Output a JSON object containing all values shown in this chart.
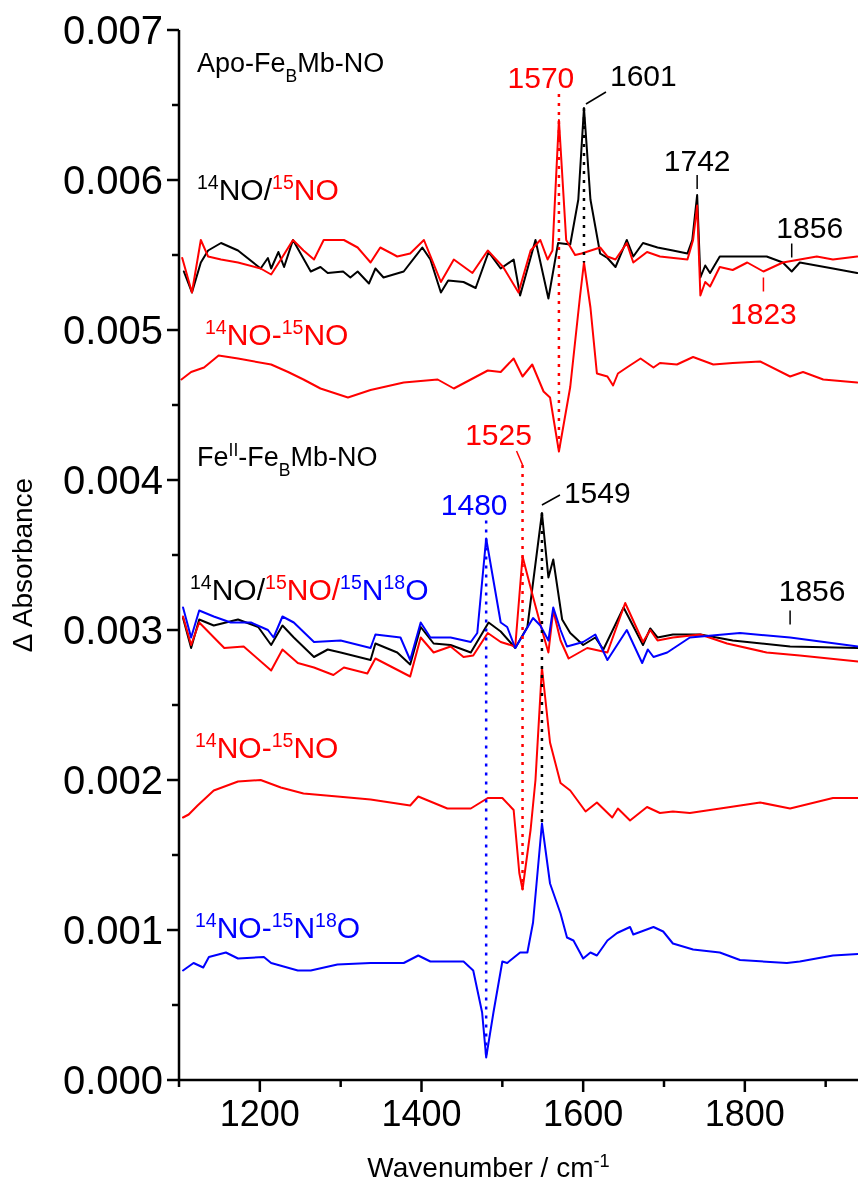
{
  "chart_data": {
    "type": "line",
    "xlabel": "Wavenumber / cm$^{-1}$",
    "ylabel": "Δ Absorbance",
    "xlim": [
      1100,
      1940
    ],
    "ylim": [
      0,
      0.007
    ],
    "xticks": [
      {
        "value": 1100,
        "label": null
      },
      1200,
      {
        "value": 1300,
        "label": null
      },
      1400,
      {
        "value": 1500,
        "label": null
      },
      1600,
      {
        "value": 1700,
        "label": null
      },
      1800,
      {
        "value": 1900,
        "label": null
      }
    ],
    "yticks": [
      {
        "value": 0,
        "label": "0.000"
      },
      {
        "value": 0.0005,
        "label": null
      },
      {
        "value": 0.001,
        "label": "0.001"
      },
      {
        "value": 0.0015,
        "label": null
      },
      {
        "value": 0.002,
        "label": "0.002"
      },
      {
        "value": 0.0025,
        "label": null
      },
      {
        "value": 0.003,
        "label": "0.003"
      },
      {
        "value": 0.0035,
        "label": null
      },
      {
        "value": 0.004,
        "label": "0.004"
      },
      {
        "value": 0.0045,
        "label": null
      },
      {
        "value": 0.005,
        "label": "0.005"
      },
      {
        "value": 0.0055,
        "label": null
      },
      {
        "value": 0.006,
        "label": "0.006"
      },
      {
        "value": 0.0065,
        "label": null
      },
      {
        "value": 0.007,
        "label": "0.007"
      }
    ],
    "series": [
      {
        "color": "#000000",
        "x": [
          1106,
          1116,
          1127,
          1136,
          1152,
          1173,
          1201,
          1210,
          1214,
          1223,
          1230,
          1241,
          1263,
          1275,
          1284,
          1303,
          1312,
          1321,
          1335,
          1343,
          1353,
          1378,
          1401,
          1411,
          1424,
          1433,
          1452,
          1467,
          1483,
          1498,
          1514,
          1522,
          1541,
          1557,
          1569,
          1584,
          1594,
          1601,
          1609,
          1621,
          1630,
          1640,
          1654,
          1662,
          1674,
          1692,
          1711,
          1729,
          1735,
          1741,
          1745,
          1751,
          1757,
          1769,
          1785,
          1827,
          1847,
          1858,
          1868,
          1909,
          1939
        ],
        "values": [
          0.00539,
          0.00525,
          0.00545,
          0.00553,
          0.00558,
          0.00553,
          0.00541,
          0.00548,
          0.00541,
          0.00552,
          0.00542,
          0.0056,
          0.00539,
          0.00542,
          0.00538,
          0.00539,
          0.00535,
          0.00539,
          0.00531,
          0.00541,
          0.00535,
          0.00539,
          0.00555,
          0.00547,
          0.00525,
          0.00533,
          0.00532,
          0.00528,
          0.00552,
          0.00541,
          0.00547,
          0.00523,
          0.0056,
          0.00521,
          0.00558,
          0.00557,
          0.00587,
          0.00648,
          0.00587,
          0.00551,
          0.00548,
          0.00542,
          0.0056,
          0.00549,
          0.00558,
          0.00555,
          0.00553,
          0.00551,
          0.0056,
          0.0059,
          0.00535,
          0.00543,
          0.00538,
          0.00549,
          0.00549,
          0.00549,
          0.00545,
          0.00539,
          0.00545,
          0.00541,
          0.00538
        ]
      },
      {
        "color": "#ff0000",
        "x": [
          1104,
          1116,
          1127,
          1136,
          1152,
          1173,
          1201,
          1214,
          1226,
          1241,
          1254,
          1267,
          1279,
          1304,
          1321,
          1337,
          1349,
          1370,
          1386,
          1403,
          1424,
          1440,
          1463,
          1482,
          1501,
          1520,
          1535,
          1547,
          1556,
          1562,
          1570,
          1579,
          1590,
          1598,
          1621,
          1630,
          1640,
          1654,
          1662,
          1679,
          1695,
          1729,
          1736,
          1741,
          1745,
          1751,
          1757,
          1769,
          1785,
          1803,
          1823,
          1847,
          1889,
          1909,
          1939
        ],
        "values": [
          0.00548,
          0.00525,
          0.0056,
          0.00549,
          0.00547,
          0.00545,
          0.00541,
          0.00537,
          0.00547,
          0.0056,
          0.00553,
          0.00547,
          0.0056,
          0.0056,
          0.00555,
          0.00545,
          0.00555,
          0.00549,
          0.00551,
          0.0056,
          0.00532,
          0.00547,
          0.00538,
          0.00553,
          0.00542,
          0.00525,
          0.00553,
          0.0056,
          0.00547,
          0.00553,
          0.0064,
          0.0056,
          0.0055,
          0.00551,
          0.00555,
          0.00549,
          0.00547,
          0.00558,
          0.00545,
          0.00552,
          0.00549,
          0.00547,
          0.0056,
          0.00583,
          0.00523,
          0.00532,
          0.00529,
          0.00542,
          0.0054,
          0.00545,
          0.00539,
          0.00545,
          0.00549,
          0.00547,
          0.00549
        ]
      },
      {
        "color": "#ff0000",
        "x": [
          1103,
          1115,
          1131,
          1149,
          1173,
          1214,
          1235,
          1254,
          1275,
          1309,
          1337,
          1378,
          1420,
          1440,
          1461,
          1482,
          1498,
          1514,
          1525,
          1537,
          1551,
          1559,
          1570,
          1584,
          1596,
          1601,
          1609,
          1617,
          1630,
          1637,
          1643,
          1654,
          1671,
          1687,
          1695,
          1716,
          1736,
          1761,
          1785,
          1819,
          1856,
          1872,
          1897,
          1939
        ],
        "values": [
          0.00467,
          0.00472,
          0.00475,
          0.00483,
          0.00481,
          0.00477,
          0.00472,
          0.00467,
          0.00461,
          0.00455,
          0.0046,
          0.00465,
          0.00467,
          0.00461,
          0.00467,
          0.00473,
          0.00472,
          0.00481,
          0.00469,
          0.00477,
          0.00459,
          0.00455,
          0.00419,
          0.00462,
          0.00522,
          0.00545,
          0.00515,
          0.00471,
          0.00469,
          0.00463,
          0.00471,
          0.00475,
          0.00481,
          0.00475,
          0.00478,
          0.00477,
          0.00482,
          0.00477,
          0.00478,
          0.00479,
          0.00469,
          0.00472,
          0.00467,
          0.00465
        ]
      },
      {
        "color": "#000000",
        "x": [
          1105,
          1115,
          1125,
          1143,
          1173,
          1198,
          1214,
          1228,
          1242,
          1267,
          1284,
          1300,
          1337,
          1343,
          1370,
          1386,
          1399,
          1415,
          1436,
          1461,
          1483,
          1498,
          1516,
          1531,
          1549,
          1557,
          1563,
          1574,
          1584,
          1600,
          1615,
          1625,
          1650,
          1674,
          1683,
          1692,
          1711,
          1745,
          1785,
          1856,
          1940
        ],
        "values": [
          0.00308,
          0.00288,
          0.00307,
          0.00303,
          0.00307,
          0.00302,
          0.0029,
          0.00303,
          0.00295,
          0.00282,
          0.00287,
          0.00285,
          0.0028,
          0.00291,
          0.00285,
          0.00277,
          0.00302,
          0.00291,
          0.0029,
          0.00285,
          0.00305,
          0.00299,
          0.00288,
          0.00302,
          0.00378,
          0.00335,
          0.00347,
          0.00307,
          0.00298,
          0.0029,
          0.00295,
          0.00287,
          0.00315,
          0.0029,
          0.00301,
          0.00295,
          0.00297,
          0.00297,
          0.00293,
          0.00289,
          0.00288
        ]
      },
      {
        "color": "#ff0000",
        "x": [
          1105,
          1115,
          1125,
          1156,
          1180,
          1214,
          1228,
          1247,
          1267,
          1291,
          1304,
          1333,
          1343,
          1386,
          1399,
          1415,
          1436,
          1452,
          1464,
          1482,
          1498,
          1516,
          1525,
          1538,
          1549,
          1557,
          1563,
          1572,
          1582,
          1605,
          1630,
          1652,
          1674,
          1683,
          1692,
          1711,
          1745,
          1778,
          1827,
          1868,
          1940
        ],
        "values": [
          0.00309,
          0.0029,
          0.00305,
          0.00288,
          0.00289,
          0.00273,
          0.00287,
          0.00278,
          0.00275,
          0.0027,
          0.00275,
          0.00271,
          0.00281,
          0.00269,
          0.00295,
          0.00285,
          0.00289,
          0.00282,
          0.00283,
          0.00298,
          0.00292,
          0.00289,
          0.00349,
          0.00322,
          0.003,
          0.00285,
          0.00313,
          0.00293,
          0.00281,
          0.00288,
          0.00285,
          0.00318,
          0.00292,
          0.003,
          0.00293,
          0.00295,
          0.00297,
          0.00291,
          0.00285,
          0.00283,
          0.00279
        ]
      },
      {
        "color": "#0000ff",
        "x": [
          1105,
          1115,
          1125,
          1143,
          1164,
          1189,
          1210,
          1217,
          1228,
          1242,
          1267,
          1300,
          1337,
          1343,
          1374,
          1386,
          1399,
          1411,
          1436,
          1461,
          1469,
          1480,
          1498,
          1506,
          1516,
          1538,
          1547,
          1557,
          1563,
          1572,
          1580,
          1600,
          1615,
          1630,
          1654,
          1673,
          1680,
          1687,
          1704,
          1732,
          1794,
          1856,
          1940
        ],
        "values": [
          0.00315,
          0.00295,
          0.00313,
          0.00309,
          0.00305,
          0.00305,
          0.003,
          0.00295,
          0.00309,
          0.00305,
          0.00292,
          0.00293,
          0.00288,
          0.00297,
          0.00295,
          0.0028,
          0.00305,
          0.00295,
          0.00295,
          0.00292,
          0.00298,
          0.00361,
          0.00305,
          0.00302,
          0.00288,
          0.00308,
          0.00303,
          0.00293,
          0.00315,
          0.003,
          0.00289,
          0.00292,
          0.00297,
          0.0028,
          0.003,
          0.00278,
          0.00287,
          0.00282,
          0.00285,
          0.00295,
          0.00298,
          0.00295,
          0.00289
        ]
      },
      {
        "color": "#ff0000",
        "x": [
          1105,
          1112,
          1123,
          1143,
          1173,
          1201,
          1226,
          1254,
          1296,
          1337,
          1386,
          1396,
          1432,
          1461,
          1482,
          1500,
          1514,
          1521,
          1525,
          1535,
          1541,
          1549,
          1559,
          1572,
          1584,
          1603,
          1617,
          1636,
          1643,
          1658,
          1679,
          1695,
          1711,
          1732,
          1782,
          1819,
          1856,
          1909,
          1940
        ],
        "values": [
          0.00175,
          0.00177,
          0.00183,
          0.00193,
          0.00199,
          0.002,
          0.00195,
          0.00191,
          0.00189,
          0.00187,
          0.00183,
          0.00189,
          0.00181,
          0.00181,
          0.00188,
          0.00188,
          0.0018,
          0.00138,
          0.00127,
          0.00167,
          0.002,
          0.00275,
          0.00225,
          0.00198,
          0.00193,
          0.00179,
          0.00185,
          0.00175,
          0.00181,
          0.00173,
          0.00182,
          0.00178,
          0.00179,
          0.00178,
          0.00182,
          0.00185,
          0.00181,
          0.00188,
          0.00188
        ]
      },
      {
        "color": "#0000ff",
        "x": [
          1105,
          1118,
          1130,
          1137,
          1158,
          1173,
          1205,
          1214,
          1247,
          1263,
          1296,
          1337,
          1378,
          1396,
          1411,
          1452,
          1464,
          1475,
          1480,
          1489,
          1500,
          1506,
          1522,
          1531,
          1538,
          1549,
          1559,
          1572,
          1580,
          1588,
          1600,
          1609,
          1617,
          1630,
          1642,
          1658,
          1662,
          1687,
          1699,
          1711,
          1736,
          1769,
          1794,
          1852,
          1868,
          1909,
          1940
        ],
        "values": [
          0.00073,
          0.00078,
          0.00075,
          0.00082,
          0.00085,
          0.00081,
          0.00082,
          0.00078,
          0.00073,
          0.00073,
          0.00077,
          0.00078,
          0.00078,
          0.00083,
          0.00079,
          0.00079,
          0.00073,
          0.00045,
          0.00015,
          0.00045,
          0.00079,
          0.00078,
          0.00085,
          0.00085,
          0.00105,
          0.00171,
          0.00131,
          0.00111,
          0.00095,
          0.00093,
          0.00081,
          0.00085,
          0.00083,
          0.00093,
          0.00098,
          0.00102,
          0.00097,
          0.00102,
          0.00099,
          0.00091,
          0.00087,
          0.00085,
          0.0008,
          0.00078,
          0.00079,
          0.00083,
          0.00084
        ]
      }
    ],
    "annotations": [
      "Apo-Fe$_{B}$Mb-NO",
      "$^{14}$NO/",
      "$^{15}$NO",
      "$^{14}$NO-$^{15}$NO",
      "Fe$^{II}$-Fe$_{B}$Mb-NO",
      "$^{14}$NO/",
      "$^{15}$NO/",
      "$^{15}$N$^{18}$O",
      "$^{14}$NO-$^{15}$NO",
      "$^{14}$NO-$^{15}$N$^{18}$O",
      {
        "text": "1570",
        "x": 1570,
        "y": 0.0064
      },
      {
        "text": "1601",
        "x": 1601,
        "y": 0.00648
      },
      {
        "text": "1742",
        "x": 1741,
        "y": 0.0059
      },
      {
        "text": "1856",
        "x": 1858,
        "y": 0.00539
      },
      {
        "text": "1823",
        "x": 1823,
        "y": 0.00539
      },
      "1525",
      {
        "text": "1480",
        "x": 1480,
        "y": 0.00361
      },
      {
        "text": "1549",
        "x": 1549,
        "y": 0.00378
      },
      {
        "text": "1856",
        "x": 1856,
        "y": 0.00289
      }
    ]
  }
}
